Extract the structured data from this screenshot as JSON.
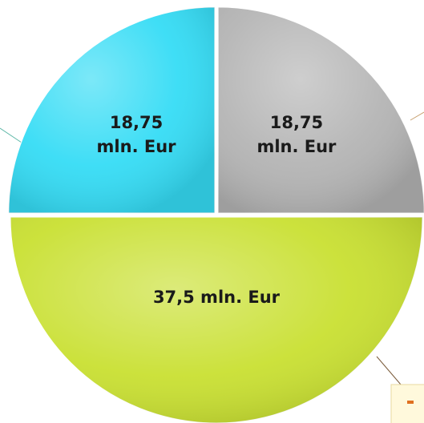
{
  "chart_data": {
    "type": "pie",
    "values": [
      18.75,
      37.5,
      18.75
    ],
    "value_labels": [
      "18,75 mln. Eur",
      "37,5 mln. Eur",
      "18,75 mln. Eur"
    ],
    "colors": [
      "#b4b4b4",
      "#c9e032",
      "#35dcf5"
    ]
  }
}
